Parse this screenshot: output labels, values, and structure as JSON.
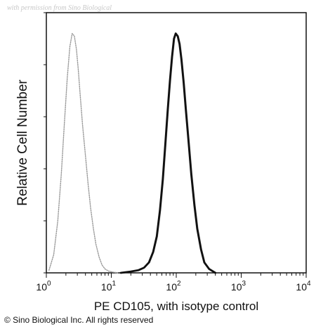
{
  "watermark": "with permission from Sino Biological",
  "copyright": "© Sino Biological Inc. All rights reserved",
  "chart_data": {
    "type": "line",
    "xscale": "log",
    "xlim": [
      1,
      10000
    ],
    "ylim": [
      0,
      100
    ],
    "xlabel": "PE CD105, with isotype control",
    "ylabel": "Relative Cell Number",
    "x_ticks": [
      {
        "base": "10",
        "exp": "0",
        "value": 1
      },
      {
        "base": "10",
        "exp": "1",
        "value": 10
      },
      {
        "base": "10",
        "exp": "2",
        "value": 100
      },
      {
        "base": "10",
        "exp": "3",
        "value": 1000
      },
      {
        "base": "10",
        "exp": "4",
        "value": 10000
      }
    ],
    "y_ticks": [
      0,
      20,
      40,
      60,
      80,
      100
    ],
    "grid": false,
    "legend": "none",
    "series": [
      {
        "style": "dotted",
        "color": "#9a9a9a",
        "x": [
          1.1,
          1.3,
          1.5,
          1.7,
          1.9,
          2.1,
          2.3,
          2.5,
          2.7,
          2.9,
          3.1,
          3.3,
          3.6,
          4.0,
          4.4,
          4.8,
          5.3,
          5.8,
          6.5,
          7.2,
          8.0,
          9.0,
          10.5,
          12.5
        ],
        "y": [
          1,
          7,
          20,
          38,
          58,
          75,
          87,
          92,
          91,
          86,
          78,
          69,
          57,
          45,
          34,
          25,
          17,
          11,
          6,
          3,
          1.5,
          0.7,
          0.3,
          0
        ]
      },
      {
        "style": "solid",
        "color": "#111111",
        "x": [
          14,
          20,
          26,
          32,
          38,
          44,
          50,
          56,
          62,
          68,
          74,
          80,
          86,
          92,
          98,
          105,
          112,
          120,
          130,
          140,
          155,
          170,
          190,
          210,
          240,
          270,
          320,
          400
        ],
        "y": [
          0,
          0.5,
          1,
          2,
          4,
          8,
          14,
          24,
          36,
          50,
          63,
          74,
          83,
          90,
          92,
          91,
          88,
          82,
          73,
          63,
          50,
          38,
          26,
          17,
          9,
          4,
          1.5,
          0
        ]
      }
    ]
  }
}
